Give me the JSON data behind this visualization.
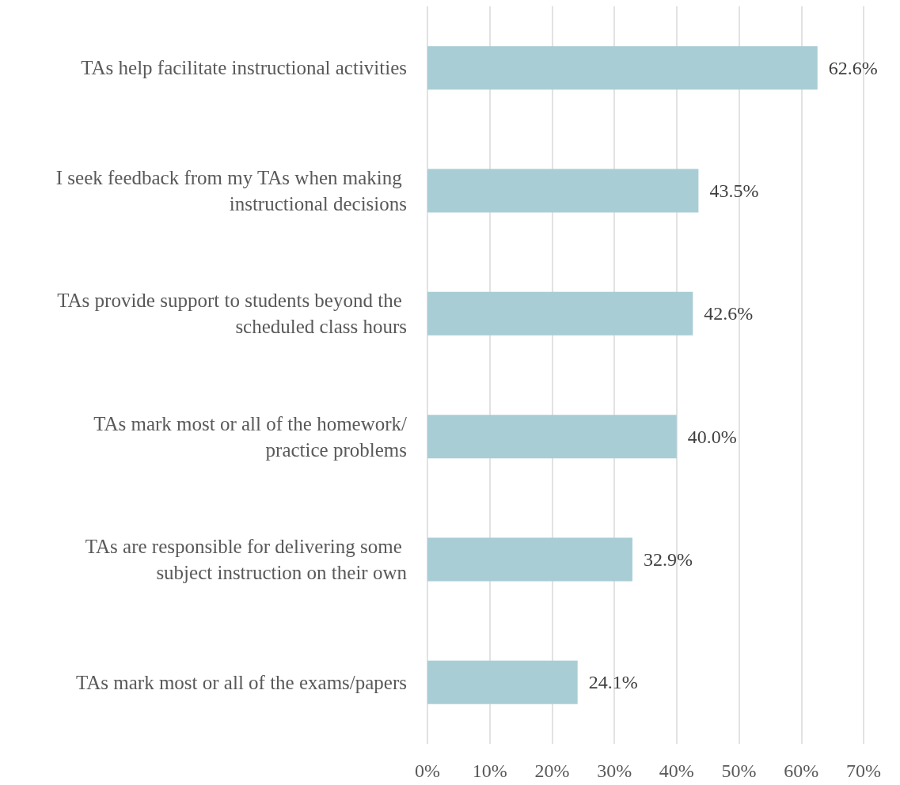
{
  "chart_data": {
    "type": "bar",
    "orientation": "horizontal",
    "categories": [
      "TAs help facilitate instructional activities",
      "I seek feedback from my TAs when making instructional decisions",
      "TAs provide support to students beyond the scheduled class hours",
      "TAs mark most or all of the homework/practice problems",
      "TAs are responsible for delivering some subject instruction on their own",
      "TAs mark most or all of the exams/papers"
    ],
    "values": [
      62.6,
      43.5,
      42.6,
      40.0,
      32.9,
      24.1
    ],
    "value_labels": [
      "62.6%",
      "43.5%",
      "42.6%",
      "40.0%",
      "32.9%",
      "24.1%"
    ],
    "color": "#a9cdd5",
    "xlim": [
      0,
      70
    ],
    "xticks": [
      {
        "value": 0,
        "label": "0%"
      },
      {
        "value": 10,
        "label": "10%"
      },
      {
        "value": 20,
        "label": "20%"
      },
      {
        "value": 30,
        "label": "30%"
      },
      {
        "value": 40,
        "label": "40%"
      },
      {
        "value": 50,
        "label": "50%"
      },
      {
        "value": 60,
        "label": "60%"
      },
      {
        "value": 70,
        "label": "70%"
      }
    ],
    "grid": "x"
  }
}
